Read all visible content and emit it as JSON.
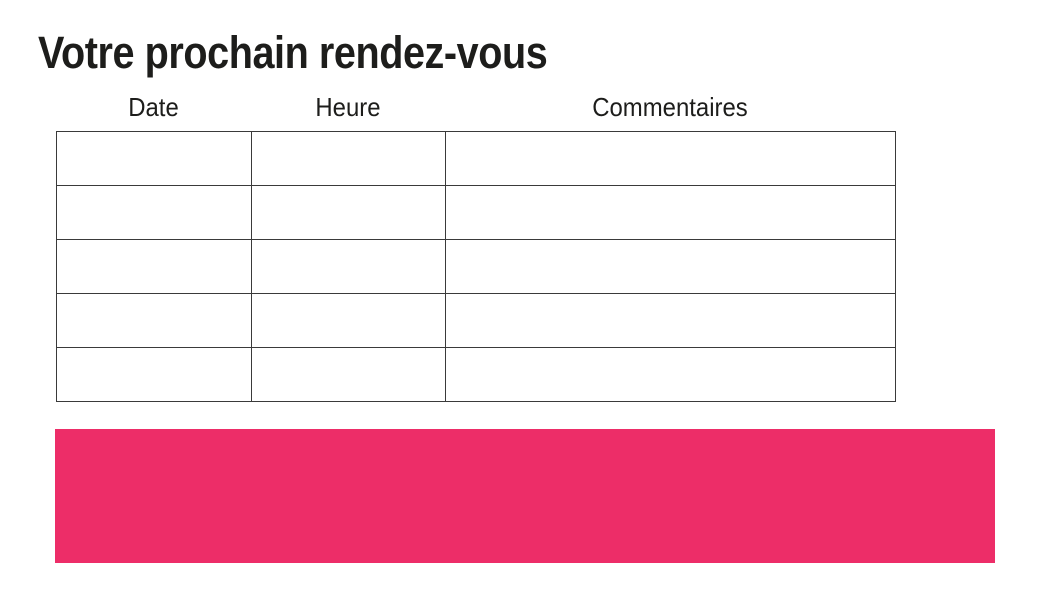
{
  "page": {
    "title": "Votre prochain rendez-vous"
  },
  "table": {
    "headers": [
      "Date",
      "Heure",
      "Commentaires"
    ],
    "rows": [
      [
        "",
        "",
        ""
      ],
      [
        "",
        "",
        ""
      ],
      [
        "",
        "",
        ""
      ],
      [
        "",
        "",
        ""
      ],
      [
        "",
        "",
        ""
      ]
    ]
  },
  "colors": {
    "accent_pink": "#ED2D68",
    "text": "#1D1D1B",
    "table_border_outer": "#1A1A1A",
    "table_border_inner": "#3A3A3A",
    "background": "#FFFFFF"
  }
}
